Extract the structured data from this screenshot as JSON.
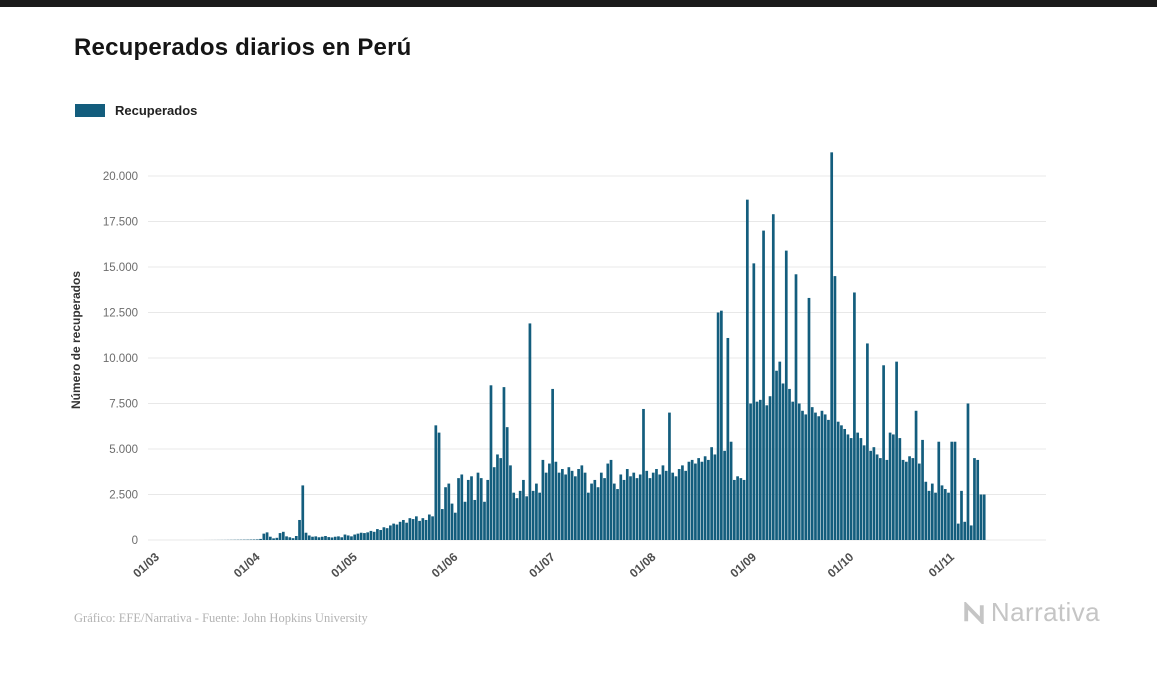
{
  "footer": {
    "credit": "Gráfico: EFE/Narrativa - Fuente: John Hopkins University",
    "logo_text": "Narrativa"
  },
  "chart_data": {
    "type": "bar",
    "title": "Recuperados diarios en Perú",
    "ylabel": "Número de recuperados",
    "xlabel": "",
    "legend": [
      "Recuperados"
    ],
    "legend_position": "top-left",
    "grid": true,
    "bar_color": "#135d7d",
    "grid_color": "#e8e8e8",
    "ylim": [
      0,
      21500
    ],
    "yticks": [
      0,
      2500,
      5000,
      7500,
      10000,
      12500,
      15000,
      17500,
      20000
    ],
    "ytick_labels": [
      "0",
      "2.500",
      "5.000",
      "7.500",
      "10.000",
      "12.500",
      "15.000",
      "17.500",
      "20.000"
    ],
    "xtick_labels": [
      "01/03",
      "01/04",
      "01/05",
      "01/06",
      "01/07",
      "01/08",
      "01/09",
      "01/10",
      "01/11"
    ],
    "xtick_day_indices": [
      0,
      31,
      61,
      92,
      122,
      153,
      184,
      214,
      245
    ],
    "values": [
      0,
      0,
      0,
      0,
      0,
      0,
      0,
      0,
      0,
      0,
      0,
      0,
      0,
      0,
      1,
      1,
      2,
      3,
      4,
      5,
      6,
      8,
      10,
      12,
      14,
      16,
      18,
      20,
      24,
      28,
      32,
      60,
      350,
      420,
      180,
      90,
      120,
      380,
      450,
      200,
      150,
      100,
      220,
      1100,
      3000,
      400,
      250,
      180,
      200,
      150,
      180,
      220,
      160,
      140,
      180,
      200,
      150,
      300,
      250,
      200,
      300,
      350,
      400,
      380,
      420,
      500,
      450,
      600,
      550,
      700,
      650,
      800,
      900,
      850,
      1000,
      1100,
      950,
      1200,
      1150,
      1300,
      1050,
      1200,
      1100,
      1400,
      1300,
      6300,
      5900,
      1700,
      2900,
      3100,
      2000,
      1500,
      3400,
      3600,
      2100,
      3300,
      3500,
      2200,
      3700,
      3400,
      2100,
      3300,
      8500,
      4000,
      4700,
      4500,
      8400,
      6200,
      4100,
      2600,
      2300,
      2700,
      3300,
      2400,
      11900,
      2700,
      3100,
      2600,
      4400,
      3700,
      4200,
      8300,
      4300,
      3700,
      3900,
      3600,
      4000,
      3800,
      3500,
      3900,
      4100,
      3700,
      2600,
      3100,
      3300,
      2900,
      3700,
      3400,
      4200,
      4400,
      3100,
      2800,
      3600,
      3300,
      3900,
      3500,
      3700,
      3400,
      3600,
      7200,
      3800,
      3400,
      3700,
      3900,
      3600,
      4100,
      3800,
      7000,
      3700,
      3500,
      3900,
      4100,
      3800,
      4300,
      4400,
      4200,
      4500,
      4300,
      4600,
      4400,
      5100,
      4700,
      12500,
      12600,
      4900,
      11100,
      5400,
      3300,
      3500,
      3400,
      3300,
      18700,
      7500,
      15200,
      7600,
      7700,
      17000,
      7400,
      7900,
      17900,
      9300,
      9800,
      8600,
      15900,
      8300,
      7600,
      14600,
      7500,
      7100,
      6900,
      13300,
      7300,
      7000,
      6800,
      7100,
      6900,
      6600,
      21300,
      14500,
      6500,
      6300,
      6100,
      5800,
      5600,
      13600,
      5900,
      5600,
      5200,
      10800,
      4900,
      5100,
      4700,
      4500,
      9600,
      4400,
      5900,
      5800,
      9800,
      5600,
      4400,
      4300,
      4600,
      4500,
      7100,
      4200,
      5500,
      3200,
      2700,
      3100,
      2600,
      5400,
      3000,
      2800,
      2600,
      5400,
      5400,
      900,
      2700,
      1000,
      7500,
      800,
      4500,
      4400,
      2500,
      2500
    ]
  }
}
